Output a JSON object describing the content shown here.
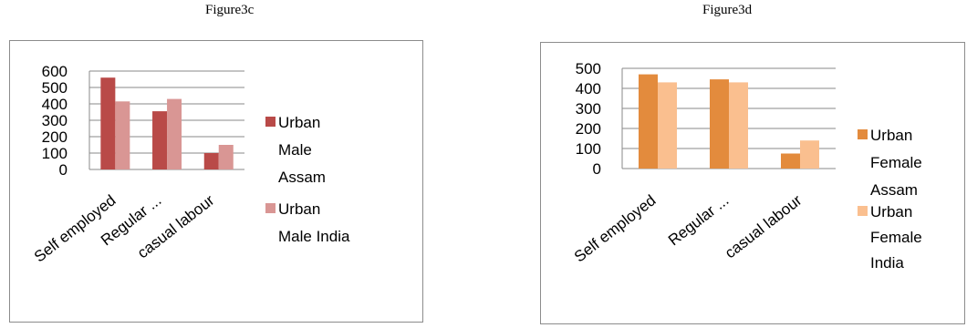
{
  "titles": {
    "c": "Figure3c",
    "d": "Figure3d"
  },
  "chart_data": [
    {
      "type": "bar",
      "title": "Figure3c",
      "categories": [
        "Self employed",
        "Regular ...",
        "casual labour"
      ],
      "series": [
        {
          "name": "Urban Male Assam",
          "legend_lines": [
            "Urban",
            "Male",
            "Assam"
          ],
          "color": "#b94a48",
          "values": [
            560,
            355,
            100
          ]
        },
        {
          "name": "Urban Male India",
          "legend_lines": [
            "Urban",
            "Male India"
          ],
          "color": "#d99694",
          "values": [
            415,
            430,
            150
          ]
        }
      ],
      "ylim": [
        0,
        600
      ],
      "yticks": [
        "0",
        "100",
        "200",
        "300",
        "400",
        "500",
        "600"
      ],
      "grid": true,
      "legend_position": "right"
    },
    {
      "type": "bar",
      "title": "Figure3d",
      "categories": [
        "Self employed",
        "Regular ...",
        "casual labour"
      ],
      "series": [
        {
          "name": "Urban Female Assam",
          "legend_lines": [
            "Urban",
            "Female",
            "Assam"
          ],
          "color": "#e38b3d",
          "values": [
            470,
            445,
            75
          ]
        },
        {
          "name": "Urban Female India",
          "legend_lines": [
            "Urban",
            "Female",
            "India"
          ],
          "color": "#fabf8f",
          "values": [
            430,
            430,
            140
          ]
        }
      ],
      "ylim": [
        0,
        500
      ],
      "yticks": [
        "0",
        "100",
        "200",
        "300",
        "400",
        "500"
      ],
      "grid": true,
      "legend_position": "right"
    }
  ]
}
